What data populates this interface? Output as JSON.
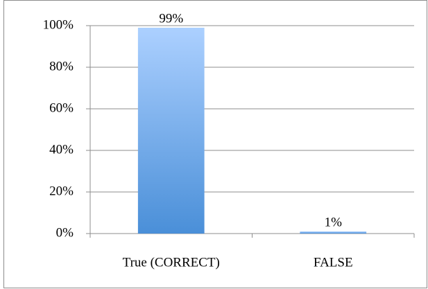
{
  "chart_data": {
    "type": "bar",
    "categories": [
      "True (CORRECT)",
      "FALSE"
    ],
    "values": [
      99,
      1
    ],
    "value_labels": [
      "99%",
      "1%"
    ],
    "color": "#4a8fd8",
    "ylim": [
      0,
      100
    ],
    "yticks": [
      {
        "value": 0,
        "label": "0%"
      },
      {
        "value": 20,
        "label": "20%"
      },
      {
        "value": 40,
        "label": "40%"
      },
      {
        "value": 60,
        "label": "60%"
      },
      {
        "value": 80,
        "label": "80%"
      },
      {
        "value": 100,
        "label": "100%"
      }
    ],
    "grid": true
  }
}
